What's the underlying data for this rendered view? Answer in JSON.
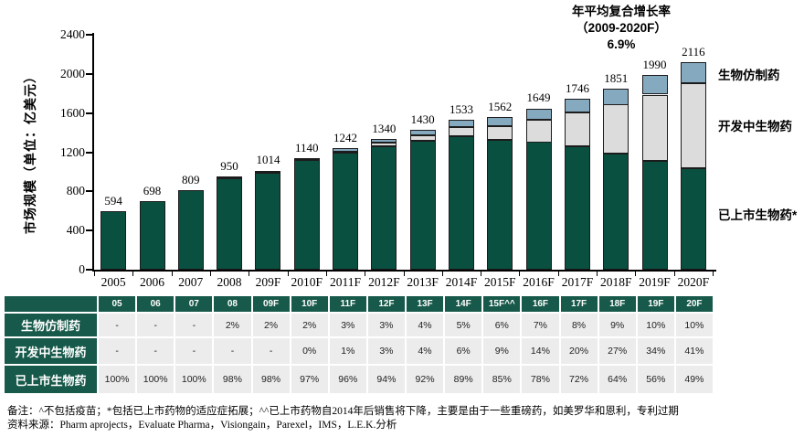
{
  "colors": {
    "bar_green": "#0a5040",
    "bar_gray": "#dcdcdc",
    "bar_blue": "#85a9bf",
    "segment_border": "#1c1c1c",
    "table_green": "#17594a",
    "table_cell_bg": "#ececec",
    "axis": "#000000"
  },
  "chart": {
    "y_axis_title": "市场规模（单位：亿美元）",
    "annotation": {
      "line1": "年平均复合增长率",
      "line2": "（2009-2020F）",
      "line3": "6.9%"
    },
    "legend": {
      "biosimilar": "生物仿制药",
      "development": "开发中生物药",
      "marketed": "已上市生物药*"
    }
  },
  "chart_data": {
    "type": "bar",
    "stacked": true,
    "title": "年平均复合增长率（2009-2020F）6.9%",
    "ylabel": "市场规模（单位：亿美元）",
    "ylim": [
      0,
      2400
    ],
    "yticks": [
      0,
      400,
      800,
      1200,
      1600,
      2000,
      2400
    ],
    "grid": false,
    "legend_position": "right",
    "categories": [
      "2005",
      "2006",
      "2007",
      "2008",
      "209F",
      "2010F",
      "2011F",
      "2012F",
      "2013F",
      "2014F",
      "2015F",
      "2016F",
      "2017F",
      "2018F",
      "2019F",
      "2020F"
    ],
    "totals": [
      594,
      698,
      809,
      950,
      1014,
      1140,
      1242,
      1340,
      1430,
      1533,
      1562,
      1649,
      1746,
      1851,
      1990,
      2116
    ],
    "series": [
      {
        "name": "已上市生物药*",
        "color": "#0a5040",
        "values": [
          594,
          698,
          809,
          931,
          994,
          1117,
          1193,
          1260,
          1316,
          1364,
          1327,
          1303,
          1257,
          1184,
          1114,
          1036
        ]
      },
      {
        "name": "开发中生物药",
        "color": "#dcdcdc",
        "values": [
          0,
          0,
          0,
          0,
          0,
          0,
          12,
          40,
          57,
          92,
          141,
          231,
          349,
          500,
          677,
          868
        ]
      },
      {
        "name": "生物仿制药",
        "color": "#85a9bf",
        "values": [
          0,
          0,
          0,
          19,
          20,
          23,
          37,
          40,
          57,
          77,
          94,
          115,
          140,
          167,
          199,
          212
        ]
      }
    ]
  },
  "table": {
    "columns": [
      "05",
      "06",
      "07",
      "08",
      "09F",
      "10F",
      "11F",
      "12F",
      "13F",
      "14F",
      "15F^^",
      "16F",
      "17F",
      "18F",
      "19F",
      "20F"
    ],
    "rows": [
      {
        "label": "生物仿制药",
        "values": [
          "-",
          "-",
          "-",
          "2%",
          "2%",
          "2%",
          "3%",
          "3%",
          "4%",
          "5%",
          "6%",
          "7%",
          "8%",
          "9%",
          "10%",
          "10%"
        ]
      },
      {
        "label": "开发中生物药",
        "values": [
          "-",
          "-",
          "-",
          "-",
          "-",
          "0%",
          "1%",
          "3%",
          "4%",
          "6%",
          "9%",
          "14%",
          "20%",
          "27%",
          "34%",
          "41%"
        ]
      },
      {
        "label": "已上市生物药",
        "values": [
          "100%",
          "100%",
          "100%",
          "98%",
          "98%",
          "97%",
          "96%",
          "94%",
          "92%",
          "89%",
          "85%",
          "78%",
          "72%",
          "64%",
          "56%",
          "49%"
        ]
      }
    ]
  },
  "footnotes": {
    "note": "备注：^不包括疫苗；*包括已上市药物的适应症拓展；^^已上市药物自2014年后销售将下降，主要是由于一些重磅药，如美罗华和恩利，专利过期",
    "source": "资料来源：Pharm aprojects，Evaluate Pharma，Visiongain，Parexel，IMS，L.E.K.分析"
  }
}
